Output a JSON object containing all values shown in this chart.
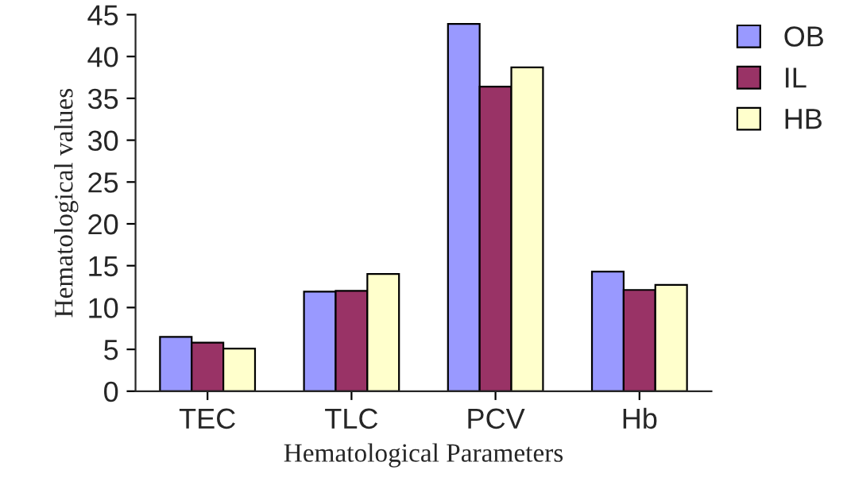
{
  "chart_data": {
    "type": "bar",
    "xlabel": "Hematological Parameters",
    "ylabel": "Hematological values",
    "categories": [
      "TEC",
      "TLC",
      "PCV",
      "Hb"
    ],
    "series": [
      {
        "name": "OB",
        "color": "#9999ff",
        "values": [
          6.5,
          11.9,
          43.9,
          14.3
        ]
      },
      {
        "name": "IL",
        "color": "#993366",
        "values": [
          5.8,
          12.0,
          36.4,
          12.1
        ]
      },
      {
        "name": "HB",
        "color": "#ffffcc",
        "values": [
          5.1,
          14.0,
          38.7,
          12.7
        ]
      }
    ],
    "ylim": [
      0,
      45
    ],
    "yticks": [
      0,
      5,
      10,
      15,
      20,
      25,
      30,
      35,
      40,
      45
    ],
    "grid": false,
    "legend": "top right"
  }
}
